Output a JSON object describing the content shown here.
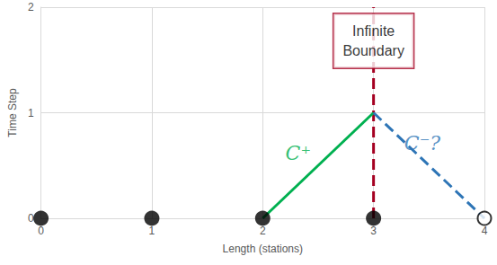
{
  "chart_data": {
    "type": "scatter",
    "x_label": "Length (stations)",
    "y_label": "Time Step",
    "xlim": [
      0,
      4
    ],
    "xticks": [
      0,
      1,
      2,
      3,
      4
    ],
    "ylim": [
      0,
      2
    ],
    "yticks": [
      0,
      1,
      2
    ],
    "grid": true,
    "series": [
      {
        "type": "vline",
        "x": [
          3
        ],
        "color": "#a50021",
        "line_style": "dashed",
        "label": "Infinite\nBoundary",
        "label_y": 1.68
      },
      {
        "type": "line",
        "x": [
          2,
          3
        ],
        "values": [
          0,
          1
        ],
        "color": "#00b050",
        "line_style": "solid",
        "label": "C⁺",
        "label_x": 2.32,
        "label_y": 0.62
      },
      {
        "type": "line",
        "x": [
          3,
          4
        ],
        "values": [
          1,
          0
        ],
        "color": "#2e75b6",
        "line_style": "dashed",
        "label": "C⁻?",
        "label_x": 3.44,
        "label_y": 0.71
      },
      {
        "type": "scatter",
        "x": [
          0,
          1,
          2,
          3
        ],
        "values": [
          0,
          0,
          0,
          0
        ],
        "color": "#000000",
        "marker": "circle"
      },
      {
        "type": "scatter",
        "x": [
          4
        ],
        "values": [
          0
        ],
        "color": "#000000",
        "marker": "open_circle"
      }
    ]
  }
}
